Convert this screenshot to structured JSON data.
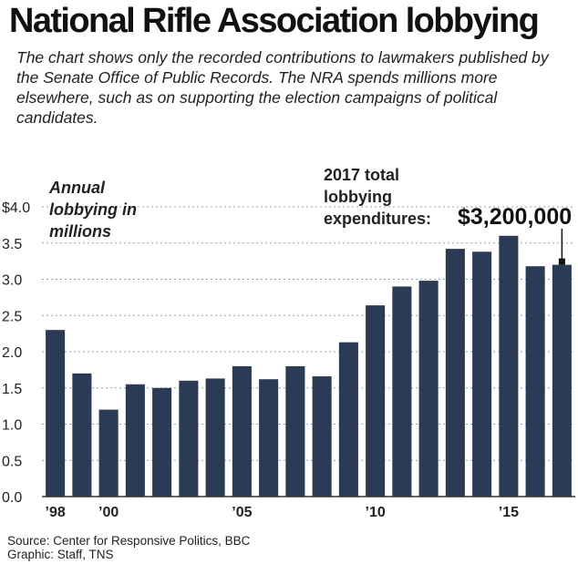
{
  "chart_data": {
    "type": "bar",
    "title": "National Rifle Association lobbying",
    "subtitle": "The chart shows only the recorded contributions to lawmakers published by the Senate Office of Public Records. The NRA spends millions more elsewhere, such as on supporting the election campaigns of political candidates.",
    "ylabel_lines": [
      "Annual",
      "lobbying in",
      "millions"
    ],
    "categories": [
      "1998",
      "1999",
      "2000",
      "2001",
      "2002",
      "2003",
      "2004",
      "2005",
      "2006",
      "2007",
      "2008",
      "2009",
      "2010",
      "2011",
      "2012",
      "2013",
      "2014",
      "2015",
      "2016",
      "2017"
    ],
    "values": [
      2.3,
      1.7,
      1.2,
      1.55,
      1.5,
      1.6,
      1.63,
      1.8,
      1.62,
      1.8,
      1.66,
      2.13,
      2.64,
      2.9,
      2.98,
      3.42,
      3.38,
      3.6,
      3.18,
      3.2
    ],
    "ylim": [
      0,
      4.0
    ],
    "y_ticks": [
      {
        "value": 0.0,
        "label": "0.0"
      },
      {
        "value": 0.5,
        "label": "0.5"
      },
      {
        "value": 1.0,
        "label": "1.0"
      },
      {
        "value": 1.5,
        "label": "1.5"
      },
      {
        "value": 2.0,
        "label": "2.0"
      },
      {
        "value": 2.5,
        "label": "2.5"
      },
      {
        "value": 3.0,
        "label": "3.0"
      },
      {
        "value": 3.5,
        "label": "3.5"
      },
      {
        "value": 4.0,
        "label": "$4.0"
      }
    ],
    "x_ticks": [
      {
        "index": 0,
        "label": "’98"
      },
      {
        "index": 2,
        "label": "’00"
      },
      {
        "index": 7,
        "label": "’05"
      },
      {
        "index": 12,
        "label": "’10"
      },
      {
        "index": 17,
        "label": "’15"
      }
    ],
    "grid": "horizontal dotted",
    "bar_color": "#2b3a55",
    "annotation": {
      "lines": [
        "2017 total",
        "lobbying",
        "expenditures:"
      ],
      "value": "$3,200,000",
      "index": 19
    }
  },
  "footer": {
    "source": "Source: Center for Responsive Politics, BBC",
    "graphic": "Graphic: Staff, TNS"
  }
}
